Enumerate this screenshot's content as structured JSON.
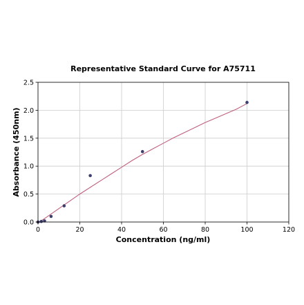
{
  "chart_data": {
    "type": "scatter",
    "title": "Representative Standard Curve for A75711",
    "xlabel": "Concentration (ng/ml)",
    "ylabel": "Absorbance (450nm)",
    "xlim": [
      0,
      120
    ],
    "ylim": [
      0,
      2.5
    ],
    "xticks": [
      "0",
      "20",
      "40",
      "60",
      "80",
      "100",
      "120"
    ],
    "yticks": [
      "0.0",
      "0.5",
      "1.0",
      "1.5",
      "2.0",
      "2.5"
    ],
    "grid": true,
    "series": [
      {
        "points": [
          {
            "x": 0,
            "y": 0.0
          },
          {
            "x": 1.56,
            "y": 0.01
          },
          {
            "x": 3.13,
            "y": 0.02
          },
          {
            "x": 6.25,
            "y": 0.1
          },
          {
            "x": 12.5,
            "y": 0.29
          },
          {
            "x": 25,
            "y": 0.83
          },
          {
            "x": 50,
            "y": 1.26
          },
          {
            "x": 100,
            "y": 2.14
          }
        ]
      }
    ],
    "fit_curve": {
      "x": [
        0,
        5,
        10,
        15,
        20,
        25,
        30,
        35,
        40,
        45,
        50,
        55,
        60,
        65,
        70,
        75,
        80,
        85,
        90,
        95,
        100
      ],
      "y": [
        -0.02,
        0.11,
        0.24,
        0.37,
        0.5,
        0.62,
        0.74,
        0.86,
        0.98,
        1.1,
        1.21,
        1.31,
        1.41,
        1.51,
        1.6,
        1.69,
        1.78,
        1.86,
        1.94,
        2.02,
        2.12
      ]
    },
    "colors": {
      "curve": "#c0607a",
      "points": "#3d3f6e",
      "grid": "#cccccc"
    }
  }
}
